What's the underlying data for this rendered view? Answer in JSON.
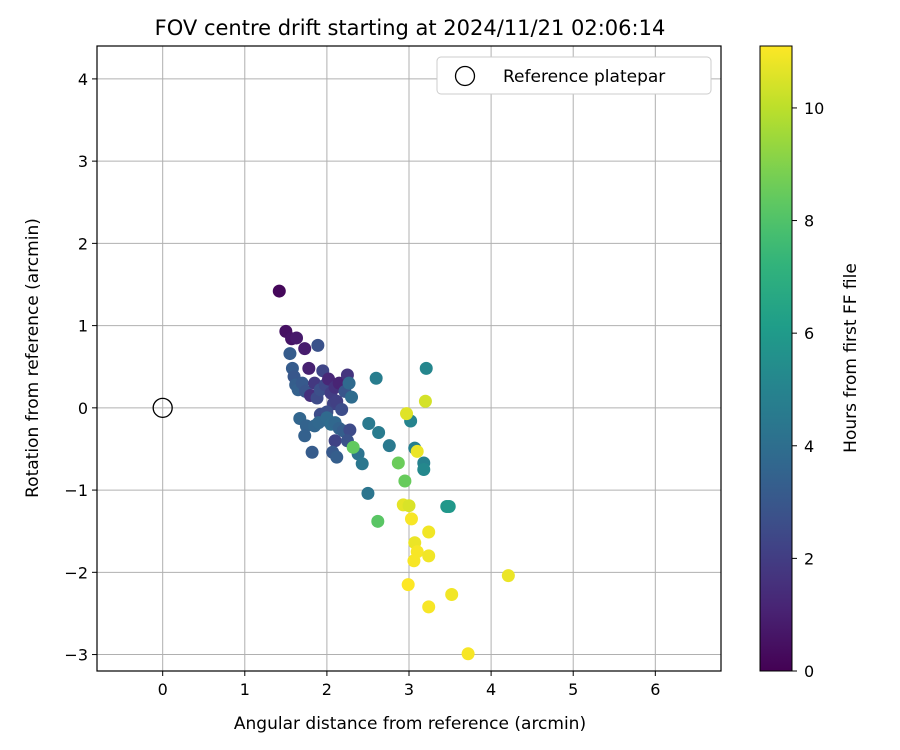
{
  "chart_data": {
    "type": "scatter",
    "title": "FOV centre drift starting at 2024/11/21 02:06:14",
    "xlabel": "Angular distance from reference (arcmin)",
    "ylabel": "Rotation from reference (arcmin)",
    "xlim": [
      -0.8,
      6.8
    ],
    "ylim": [
      -3.2,
      4.4
    ],
    "xticks": [
      0,
      1,
      2,
      3,
      4,
      5,
      6
    ],
    "yticks": [
      -3,
      -2,
      -1,
      0,
      1,
      2,
      3,
      4
    ],
    "grid": true,
    "legend": {
      "position": "top-right",
      "entries": [
        "Reference platepar"
      ]
    },
    "reference_point": {
      "x": 0,
      "y": 0,
      "marker": "open-circle"
    },
    "colorbar": {
      "label": "Hours from first FF file",
      "colormap": "viridis",
      "range": [
        0,
        11.1
      ],
      "ticks": [
        0,
        2,
        4,
        6,
        8,
        10
      ]
    },
    "points": [
      {
        "x": 1.42,
        "y": 1.42,
        "c": 0.2
      },
      {
        "x": 1.5,
        "y": 0.93,
        "c": 0.5
      },
      {
        "x": 1.57,
        "y": 0.84,
        "c": 0.6
      },
      {
        "x": 1.63,
        "y": 0.85,
        "c": 0.8
      },
      {
        "x": 1.73,
        "y": 0.72,
        "c": 0.9
      },
      {
        "x": 1.78,
        "y": 0.48,
        "c": 1.0
      },
      {
        "x": 1.55,
        "y": 0.66,
        "c": 3.2
      },
      {
        "x": 1.58,
        "y": 0.48,
        "c": 3.2
      },
      {
        "x": 1.89,
        "y": 0.76,
        "c": 2.8
      },
      {
        "x": 1.6,
        "y": 0.38,
        "c": 3.0
      },
      {
        "x": 1.62,
        "y": 0.28,
        "c": 3.3
      },
      {
        "x": 1.65,
        "y": 0.22,
        "c": 3.4
      },
      {
        "x": 1.7,
        "y": 0.3,
        "c": 3.1
      },
      {
        "x": 1.74,
        "y": 0.2,
        "c": 2.9
      },
      {
        "x": 1.8,
        "y": 0.15,
        "c": 1.5
      },
      {
        "x": 1.85,
        "y": 0.3,
        "c": 1.8
      },
      {
        "x": 1.88,
        "y": 0.12,
        "c": 2.5
      },
      {
        "x": 1.92,
        "y": 0.22,
        "c": 2.7
      },
      {
        "x": 1.95,
        "y": 0.45,
        "c": 2.3
      },
      {
        "x": 1.98,
        "y": 0.28,
        "c": 2.4
      },
      {
        "x": 2.02,
        "y": 0.35,
        "c": 1.2
      },
      {
        "x": 2.05,
        "y": 0.18,
        "c": 2.0
      },
      {
        "x": 2.08,
        "y": 0.05,
        "c": 2.2
      },
      {
        "x": 2.1,
        "y": 0.25,
        "c": 1.6
      },
      {
        "x": 2.12,
        "y": 0.08,
        "c": 2.1
      },
      {
        "x": 2.15,
        "y": 0.3,
        "c": 1.1
      },
      {
        "x": 2.18,
        "y": -0.02,
        "c": 2.6
      },
      {
        "x": 2.25,
        "y": 0.4,
        "c": 1.7
      },
      {
        "x": 2.22,
        "y": 0.2,
        "c": 2.9
      },
      {
        "x": 2.27,
        "y": 0.3,
        "c": 3.8
      },
      {
        "x": 2.3,
        "y": 0.13,
        "c": 3.9
      },
      {
        "x": 1.92,
        "y": -0.08,
        "c": 2.6
      },
      {
        "x": 1.95,
        "y": -0.15,
        "c": 2.4
      },
      {
        "x": 2.0,
        "y": -0.05,
        "c": 2.7
      },
      {
        "x": 1.67,
        "y": -0.13,
        "c": 3.6
      },
      {
        "x": 1.75,
        "y": -0.22,
        "c": 3.5
      },
      {
        "x": 1.73,
        "y": -0.34,
        "c": 3.4
      },
      {
        "x": 1.85,
        "y": -0.22,
        "c": 3.6
      },
      {
        "x": 1.9,
        "y": -0.18,
        "c": 3.7
      },
      {
        "x": 2.0,
        "y": -0.12,
        "c": 3.8
      },
      {
        "x": 2.05,
        "y": -0.2,
        "c": 3.9
      },
      {
        "x": 2.1,
        "y": -0.18,
        "c": 3.7
      },
      {
        "x": 2.15,
        "y": -0.25,
        "c": 3.5
      },
      {
        "x": 2.2,
        "y": -0.28,
        "c": 3.3
      },
      {
        "x": 2.28,
        "y": -0.27,
        "c": 2.5
      },
      {
        "x": 2.1,
        "y": -0.4,
        "c": 2.2
      },
      {
        "x": 2.25,
        "y": -0.4,
        "c": 2.8
      },
      {
        "x": 1.82,
        "y": -0.54,
        "c": 3.2
      },
      {
        "x": 2.07,
        "y": -0.54,
        "c": 3.1
      },
      {
        "x": 2.12,
        "y": -0.6,
        "c": 3.3
      },
      {
        "x": 2.38,
        "y": -0.56,
        "c": 4.2
      },
      {
        "x": 2.43,
        "y": -0.68,
        "c": 4.4
      },
      {
        "x": 2.51,
        "y": -0.19,
        "c": 4.5
      },
      {
        "x": 2.6,
        "y": 0.36,
        "c": 4.7
      },
      {
        "x": 2.63,
        "y": -0.3,
        "c": 4.6
      },
      {
        "x": 2.76,
        "y": -0.46,
        "c": 4.5
      },
      {
        "x": 2.5,
        "y": -1.04,
        "c": 4.3
      },
      {
        "x": 2.32,
        "y": -0.48,
        "c": 8.4
      },
      {
        "x": 2.87,
        "y": -0.67,
        "c": 8.6
      },
      {
        "x": 2.95,
        "y": -0.89,
        "c": 8.5
      },
      {
        "x": 2.62,
        "y": -1.38,
        "c": 8.2
      },
      {
        "x": 3.02,
        "y": -0.16,
        "c": 5.0
      },
      {
        "x": 3.07,
        "y": -0.49,
        "c": 4.8
      },
      {
        "x": 3.18,
        "y": -0.67,
        "c": 4.9
      },
      {
        "x": 3.18,
        "y": -0.75,
        "c": 5.2
      },
      {
        "x": 3.21,
        "y": 0.48,
        "c": 5.1
      },
      {
        "x": 3.46,
        "y": -1.2,
        "c": 5.8
      },
      {
        "x": 3.49,
        "y": -1.2,
        "c": 5.9
      },
      {
        "x": 2.97,
        "y": -0.07,
        "c": 10.6
      },
      {
        "x": 3.2,
        "y": 0.08,
        "c": 10.4
      },
      {
        "x": 3.1,
        "y": -0.53,
        "c": 10.8
      },
      {
        "x": 2.93,
        "y": -1.18,
        "c": 10.7
      },
      {
        "x": 3.0,
        "y": -1.19,
        "c": 10.5
      },
      {
        "x": 3.03,
        "y": -1.35,
        "c": 11.0
      },
      {
        "x": 3.24,
        "y": -1.51,
        "c": 10.9
      },
      {
        "x": 3.07,
        "y": -1.64,
        "c": 10.8
      },
      {
        "x": 3.1,
        "y": -1.75,
        "c": 11.0
      },
      {
        "x": 3.24,
        "y": -1.8,
        "c": 10.9
      },
      {
        "x": 3.06,
        "y": -1.86,
        "c": 11.0
      },
      {
        "x": 2.99,
        "y": -2.15,
        "c": 11.1
      },
      {
        "x": 3.24,
        "y": -2.42,
        "c": 11.0
      },
      {
        "x": 3.52,
        "y": -2.27,
        "c": 10.9
      },
      {
        "x": 4.21,
        "y": -2.04,
        "c": 10.8
      },
      {
        "x": 3.72,
        "y": -2.99,
        "c": 11.0
      }
    ]
  }
}
